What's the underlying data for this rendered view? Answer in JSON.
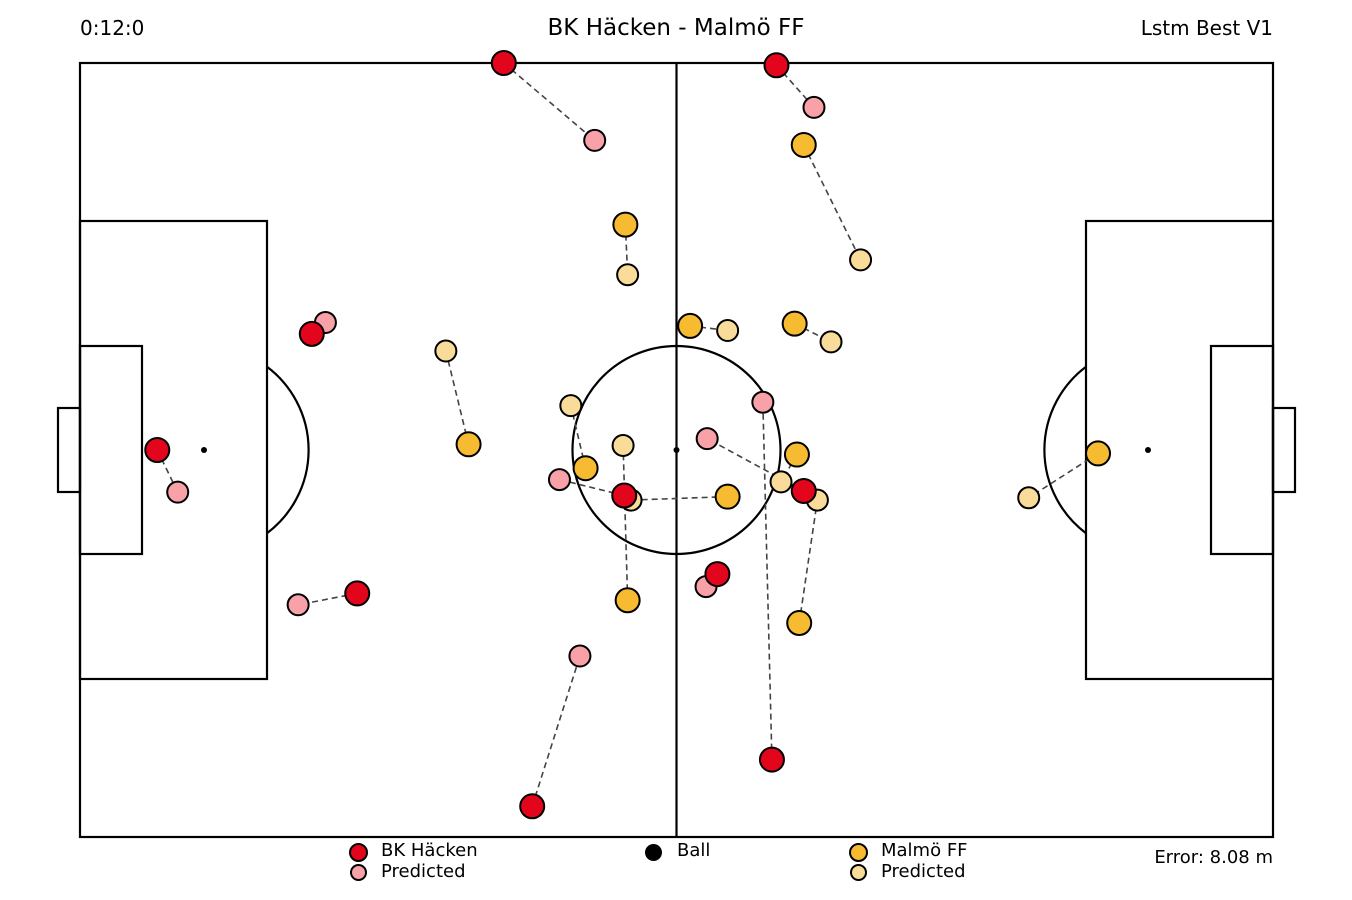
{
  "header": {
    "clock": "0:12:0",
    "title": "BK Häcken - Malmö FF",
    "model": "Lstm Best V1"
  },
  "footer": {
    "error": "Error: 8.08 m"
  },
  "legend": {
    "team_a": "BK Häcken",
    "team_a_predicted": "Predicted",
    "ball": "Ball",
    "team_b": "Malmö FF",
    "team_b_predicted": "Predicted"
  },
  "colors": {
    "team_a": "#e3051b",
    "team_a_predicted": "#f9a1a8",
    "team_b": "#f6bb31",
    "team_b_predicted": "#fadc9a",
    "ball": "#000000",
    "pitch_lines": "#000000"
  },
  "pitch": {
    "length_m": 105,
    "width_m": 68
  },
  "chart_data": {
    "type": "scatter",
    "x_range_m": [
      -52.5,
      52.5
    ],
    "y_range_m": [
      -34,
      34
    ],
    "ball": [
      0.0,
      0.0
    ],
    "team_a": [
      {
        "actual": [
          -15.2,
          34.0
        ],
        "predicted": [
          -7.2,
          27.2
        ]
      },
      {
        "actual": [
          8.8,
          33.8
        ],
        "predicted": [
          12.1,
          30.1
        ]
      },
      {
        "actual": [
          -32.1,
          10.2
        ],
        "predicted": [
          -30.9,
          11.2
        ]
      },
      {
        "actual": [
          -45.7,
          0.0
        ],
        "predicted": [
          -43.9,
          -3.7
        ]
      },
      {
        "actual": [
          -28.1,
          -12.6
        ],
        "predicted": [
          -33.3,
          -13.6
        ]
      },
      {
        "actual": [
          -12.7,
          -31.3
        ],
        "predicted": [
          -8.5,
          -18.1
        ]
      },
      {
        "actual": [
          -4.6,
          -4.0
        ],
        "predicted": [
          -10.3,
          -2.6
        ]
      },
      {
        "actual": [
          11.2,
          -3.6
        ],
        "predicted": [
          2.7,
          1.0
        ]
      },
      {
        "actual": [
          3.6,
          -10.9
        ],
        "predicted": [
          2.6,
          -12.0
        ]
      },
      {
        "actual": [
          8.4,
          -27.2
        ],
        "predicted": [
          7.6,
          4.2
        ]
      }
    ],
    "team_b": [
      {
        "actual": [
          -4.5,
          19.8
        ],
        "predicted": [
          -4.3,
          15.4
        ]
      },
      {
        "actual": [
          11.2,
          26.8
        ],
        "predicted": [
          16.2,
          16.7
        ]
      },
      {
        "actual": [
          1.2,
          10.9
        ],
        "predicted": [
          4.5,
          10.5
        ]
      },
      {
        "actual": [
          10.4,
          11.1
        ],
        "predicted": [
          13.6,
          9.5
        ]
      },
      {
        "actual": [
          -18.3,
          0.5
        ],
        "predicted": [
          -20.3,
          8.7
        ]
      },
      {
        "actual": [
          -8.0,
          -1.6
        ],
        "predicted": [
          -9.3,
          3.9
        ]
      },
      {
        "actual": [
          4.5,
          -4.1
        ],
        "predicted": [
          -4.0,
          -4.4
        ]
      },
      {
        "actual": [
          10.6,
          -0.4
        ],
        "predicted": [
          9.2,
          -2.8
        ]
      },
      {
        "actual": [
          -4.3,
          -13.2
        ],
        "predicted": [
          -4.7,
          0.4
        ]
      },
      {
        "actual": [
          10.8,
          -15.2
        ],
        "predicted": [
          12.4,
          -4.4
        ]
      },
      {
        "actual": [
          37.1,
          -0.3
        ],
        "predicted": [
          31.0,
          -4.2
        ]
      }
    ]
  }
}
